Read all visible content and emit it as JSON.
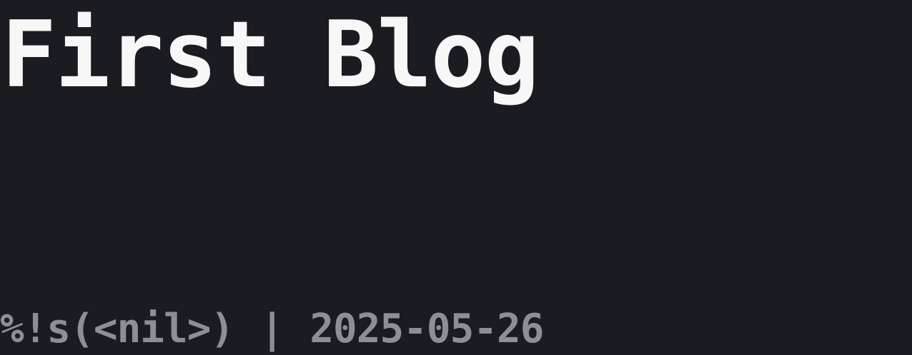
{
  "post": {
    "title": "First Blog",
    "author": "%!s(<nil>)",
    "separator": "|",
    "date": "2025-05-26"
  },
  "colors": {
    "background": "#1b1c21",
    "title": "#f7f7f8",
    "meta": "#8d8f96"
  }
}
